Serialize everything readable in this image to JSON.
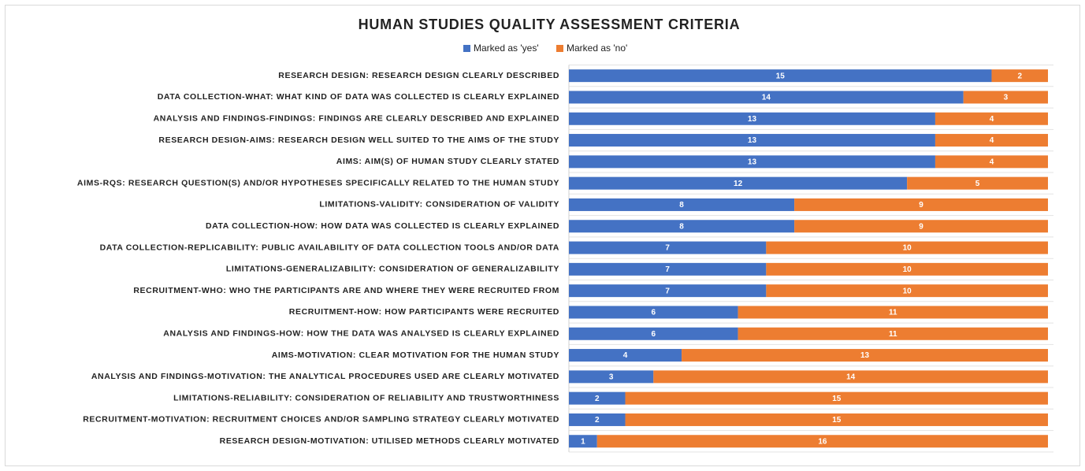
{
  "chart_data": {
    "type": "stacked_bar_horizontal",
    "title": "HUMAN STUDIES QUALITY ASSESSMENT CRITERIA",
    "categories": [
      "RESEARCH DESIGN: RESEARCH DESIGN CLEARLY DESCRIBED",
      "DATA COLLECTION-WHAT: WHAT KIND OF DATA WAS COLLECTED IS CLEARLY EXPLAINED",
      "ANALYSIS AND FINDINGS-FINDINGS: FINDINGS ARE CLEARLY DESCRIBED AND EXPLAINED",
      "RESEARCH DESIGN-AIMS: RESEARCH DESIGN WELL SUITED TO THE AIMS OF THE STUDY",
      "AIMS: AIM(S) OF HUMAN STUDY CLEARLY STATED",
      "AIMS-RQS: RESEARCH QUESTION(S) AND/OR HYPOTHESES SPECIFICALLY RELATED TO THE HUMAN STUDY",
      "LIMITATIONS-VALIDITY: CONSIDERATION OF VALIDITY",
      "DATA COLLECTION-HOW: HOW DATA WAS COLLECTED IS CLEARLY EXPLAINED",
      "DATA COLLECTION-REPLICABILITY: PUBLIC AVAILABILITY OF DATA COLLECTION TOOLS AND/OR DATA",
      "LIMITATIONS-GENERALIZABILITY: CONSIDERATION OF GENERALIZABILITY",
      "RECRUITMENT-WHO: WHO THE PARTICIPANTS ARE AND WHERE THEY WERE RECRUITED FROM",
      "RECRUITMENT-HOW: HOW PARTICIPANTS WERE RECRUITED",
      "ANALYSIS AND FINDINGS-HOW: HOW THE DATA WAS ANALYSED IS CLEARLY EXPLAINED",
      "AIMS-MOTIVATION: CLEAR MOTIVATION FOR THE HUMAN STUDY",
      "ANALYSIS AND FINDINGS-MOTIVATION: THE ANALYTICAL PROCEDURES USED ARE CLEARLY MOTIVATED",
      "LIMITATIONS-RELIABILITY: CONSIDERATION OF RELIABILITY AND TRUSTWORTHINESS",
      "RECRUITMENT-MOTIVATION: RECRUITMENT CHOICES AND/OR SAMPLING STRATEGY CLEARLY MOTIVATED",
      "RESEARCH DESIGN-MOTIVATION: UTILISED METHODS CLEARLY MOTIVATED"
    ],
    "series": [
      {
        "name": "Marked as 'yes'",
        "color": "#4472c4",
        "values": [
          15,
          14,
          13,
          13,
          13,
          12,
          8,
          8,
          7,
          7,
          7,
          6,
          6,
          4,
          3,
          2,
          2,
          1
        ]
      },
      {
        "name": "Marked as 'no'",
        "color": "#ed7d31",
        "values": [
          2,
          3,
          4,
          4,
          4,
          5,
          9,
          9,
          10,
          10,
          10,
          11,
          11,
          13,
          14,
          15,
          15,
          16
        ]
      }
    ],
    "xlim": [
      0,
      17
    ],
    "legend": "top"
  }
}
